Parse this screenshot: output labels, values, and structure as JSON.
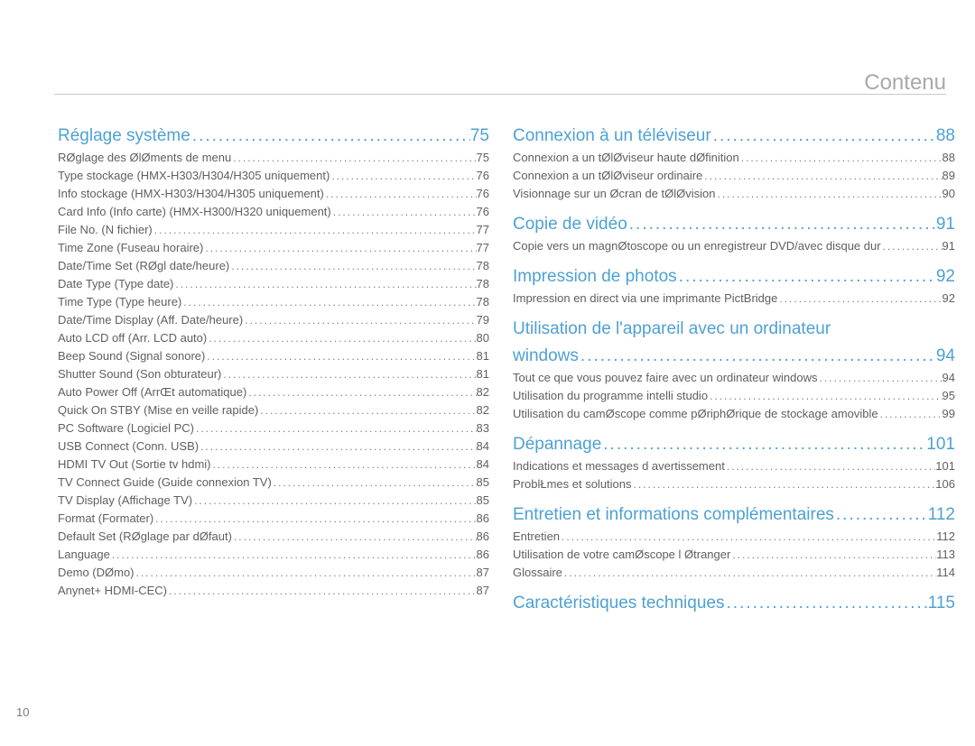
{
  "headerTitle": "Contenu",
  "pageNumber": "10",
  "leftSections": [
    {
      "title": "Réglage système",
      "page": "75",
      "items": [
        {
          "label": "RØglage des ØlØments de menu",
          "page": "75"
        },
        {
          "label": "Type stockage (HMX-H303/H304/H305 uniquement)",
          "page": "76"
        },
        {
          "label": "Info stockage (HMX-H303/H304/H305 uniquement)",
          "page": "76"
        },
        {
          "label": "Card Info (Info carte) (HMX-H300/H320 uniquement)",
          "page": "76"
        },
        {
          "label": "File No. (N  fichier)",
          "page": "77"
        },
        {
          "label": "Time Zone (Fuseau horaire)",
          "page": "77"
        },
        {
          "label": "Date/Time Set (RØgl date/heure)",
          "page": "78"
        },
        {
          "label": "Date Type (Type date)",
          "page": "78"
        },
        {
          "label": "Time Type (Type heure)",
          "page": "78"
        },
        {
          "label": "Date/Time Display (Aff. Date/heure)",
          "page": "79"
        },
        {
          "label": "Auto LCD off (Arr. LCD auto)",
          "page": "80"
        },
        {
          "label": "Beep Sound (Signal sonore)",
          "page": "81"
        },
        {
          "label": "Shutter Sound (Son obturateur)",
          "page": "81"
        },
        {
          "label": "Auto Power Off (ArrŒt automatique)",
          "page": "82"
        },
        {
          "label": "Quick On STBY (Mise en veille rapide)",
          "page": "82"
        },
        {
          "label": "PC Software (Logiciel PC)",
          "page": "83"
        },
        {
          "label": "USB Connect (Conn. USB)",
          "page": "84"
        },
        {
          "label": "HDMI TV Out (Sortie tv hdmi)",
          "page": "84"
        },
        {
          "label": "TV Connect Guide (Guide connexion TV)",
          "page": "85"
        },
        {
          "label": "TV Display (Affichage TV)",
          "page": "85"
        },
        {
          "label": "Format (Formater)",
          "page": "86"
        },
        {
          "label": "Default Set (RØglage par dØfaut)",
          "page": "86"
        },
        {
          "label": "Language",
          "page": "86"
        },
        {
          "label": "Demo (DØmo)",
          "page": "87"
        },
        {
          "label": "Anynet+ HDMI-CEC)",
          "page": "87"
        }
      ]
    }
  ],
  "rightSections": [
    {
      "title": "Connexion à un téléviseur",
      "page": "88",
      "wrap": false,
      "items": [
        {
          "label": "Connexion a un tØlØviseur haute dØfinition",
          "page": "88"
        },
        {
          "label": "Connexion a un tØlØviseur ordinaire",
          "page": "89"
        },
        {
          "label": "Visionnage sur un Øcran de tØlØvision",
          "page": "90"
        }
      ]
    },
    {
      "title": "Copie de vidéo",
      "page": "91",
      "wrap": false,
      "items": [
        {
          "label": "Copie vers un magnØtoscope ou un enregistreur DVD/avec disque dur",
          "page": "91"
        }
      ]
    },
    {
      "title": "Impression de photos",
      "page": "92",
      "wrap": false,
      "items": [
        {
          "label": "Impression en direct via une imprimante PictBridge",
          "page": "92"
        }
      ]
    },
    {
      "title": "Utilisation de l'appareil avec un ordinateur windows",
      "titleLine2": "windows",
      "page": "94",
      "wrap": true,
      "titleLine1": "Utilisation de l'appareil avec un ordinateur",
      "items": [
        {
          "label": "Tout ce que vous pouvez faire avec un ordinateur windows",
          "page": "94"
        },
        {
          "label": "Utilisation du programme intelli   studio",
          "page": "95"
        },
        {
          "label": "Utilisation du camØscope comme pØriphØrique de stockage amovible",
          "page": "99"
        }
      ]
    },
    {
      "title": "Dépannage",
      "page": "101",
      "wrap": false,
      "items": [
        {
          "label": "Indications et messages d avertissement",
          "page": "101"
        },
        {
          "label": "ProblŁmes et solutions",
          "page": "106"
        }
      ]
    },
    {
      "title": "Entretien et informations complémentaires",
      "page": "112",
      "wrap": false,
      "items": [
        {
          "label": "Entretien",
          "page": "112"
        },
        {
          "label": "Utilisation de votre camØscope   l Øtranger",
          "page": "113"
        },
        {
          "label": "Glossaire",
          "page": "114"
        }
      ]
    },
    {
      "title": "Caractéristiques techniques",
      "page": "115",
      "wrap": false,
      "items": []
    }
  ]
}
